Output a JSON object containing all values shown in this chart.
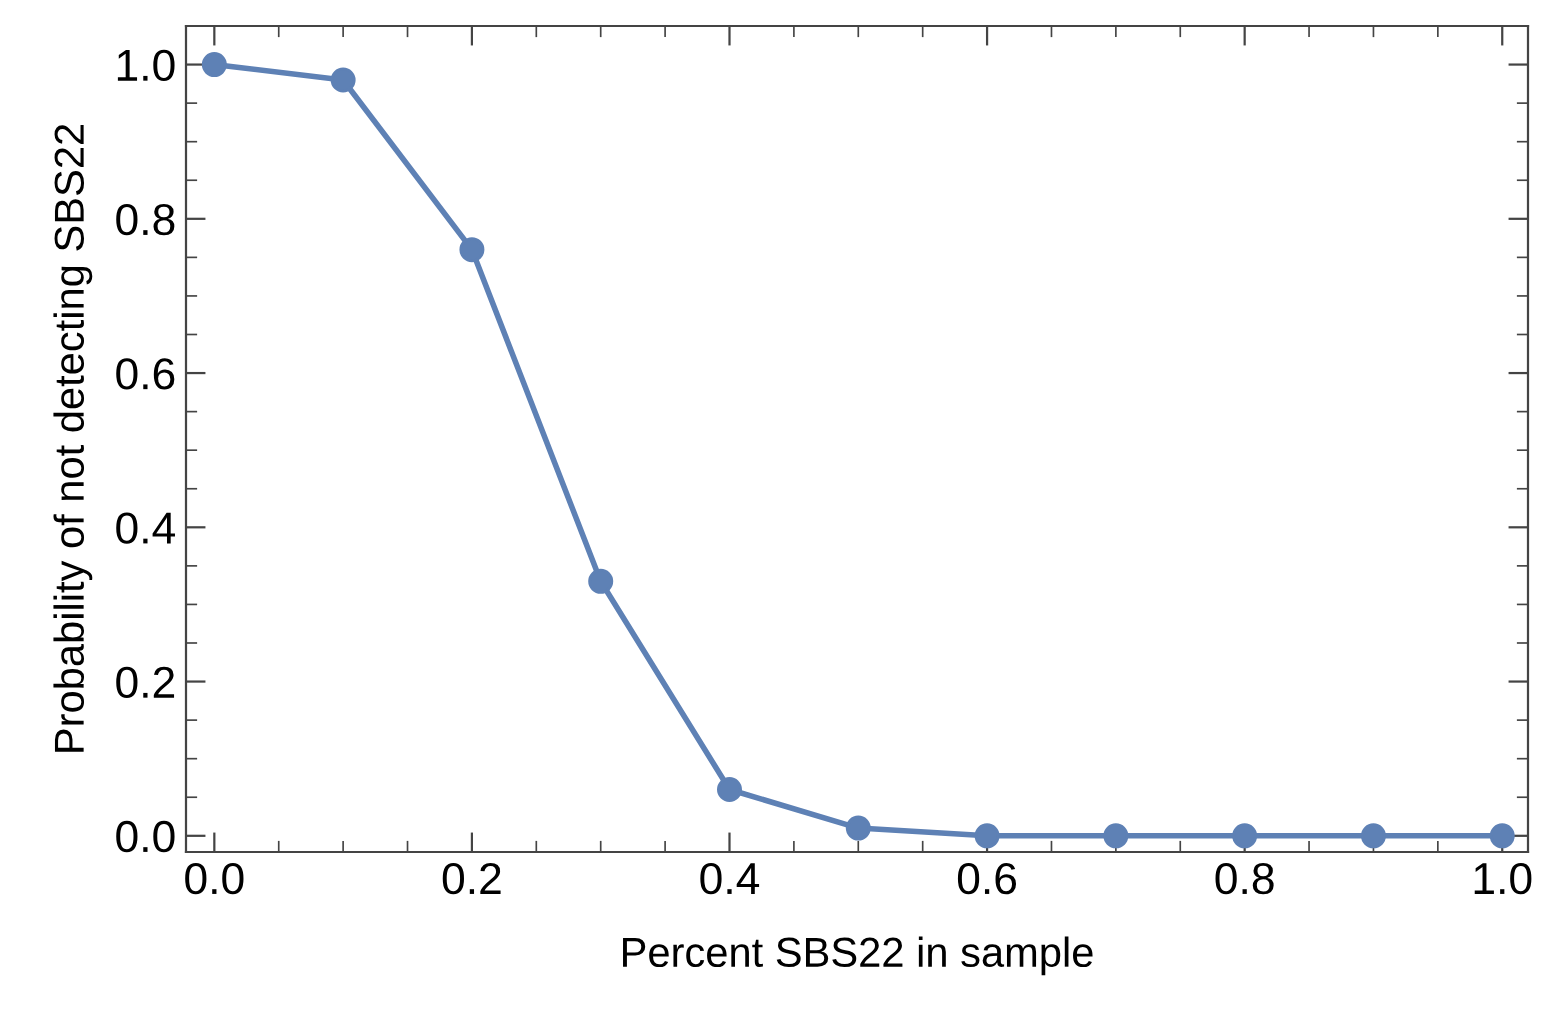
{
  "chart_data": {
    "type": "line",
    "xlabel": "Percent SBS22 in sample",
    "ylabel": "Probability of not detecting SBS22",
    "x": [
      0.0,
      0.1,
      0.2,
      0.3,
      0.4,
      0.5,
      0.6,
      0.7,
      0.8,
      0.9,
      1.0
    ],
    "series": [
      {
        "color": "#5e81b5",
        "values": [
          1.0,
          0.98,
          0.76,
          0.33,
          0.06,
          0.01,
          0.0,
          0.0,
          0.0,
          0.0,
          0.0
        ]
      }
    ],
    "xlim": [
      -0.022,
      1.02
    ],
    "ylim": [
      -0.021,
      1.05
    ],
    "xticks": [
      {
        "value": 0.0,
        "label": "0.0"
      },
      0.2,
      0.4,
      0.6,
      0.8,
      {
        "value": 1.0,
        "label": "1.0"
      }
    ],
    "yticks": [
      {
        "value": 0.0,
        "label": "0.0"
      },
      0.2,
      0.4,
      0.6,
      0.8,
      {
        "value": 1.0,
        "label": "1.0"
      }
    ],
    "marker": "circle",
    "line_style": "solid",
    "grid": false,
    "legend": false
  }
}
